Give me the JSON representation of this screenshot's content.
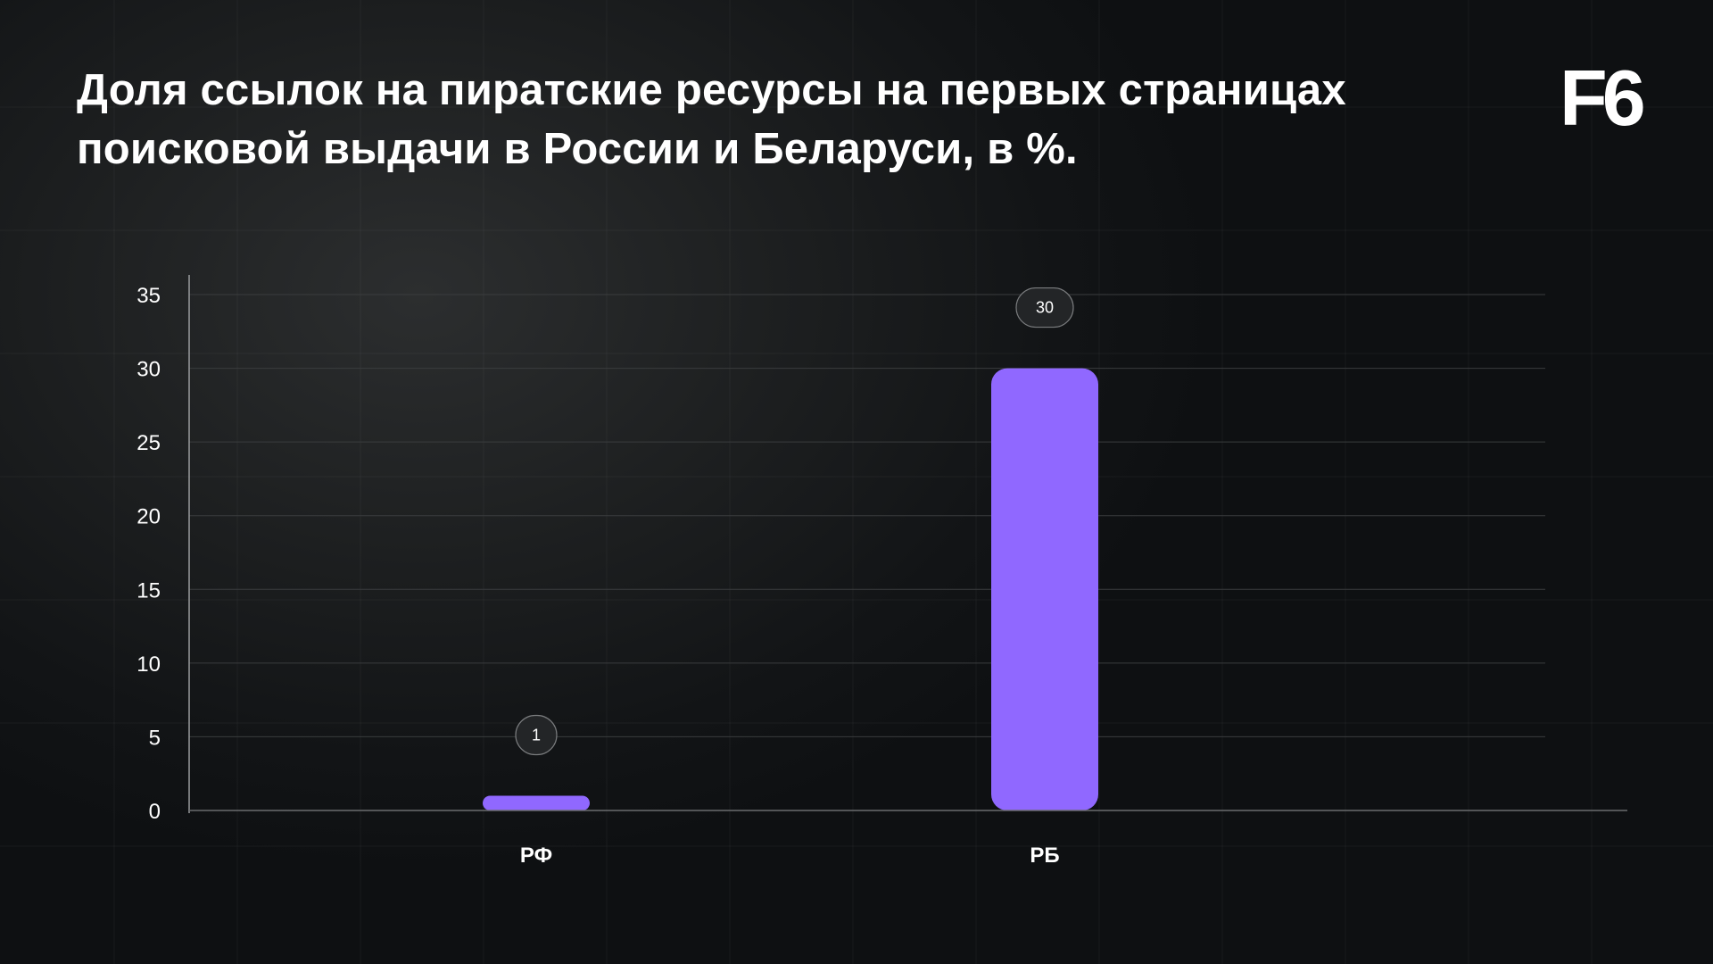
{
  "title": "Доля ссылок на пиратские ресурсы на первых страницах поисковой выдачи в России и Беларуси, в %.",
  "logo_text": "F6",
  "colors": {
    "bar": "#9068ff",
    "gridline": "#3a3c3e",
    "axis": "#9a9c9e",
    "badge_border": "#7a7c7e",
    "badge_fill": "#232527"
  },
  "chart_data": {
    "type": "bar",
    "title": "Доля ссылок на пиратские ресурсы на первых страницах поисковой выдачи в России и Беларуси, в %.",
    "categories": [
      "РФ",
      "РБ"
    ],
    "values": [
      1,
      30
    ],
    "data_labels": [
      "1",
      "30"
    ],
    "ylim": [
      0,
      35
    ],
    "yticks": [
      0,
      5,
      10,
      15,
      20,
      25,
      30,
      35
    ],
    "grid": true,
    "legend": "none"
  }
}
